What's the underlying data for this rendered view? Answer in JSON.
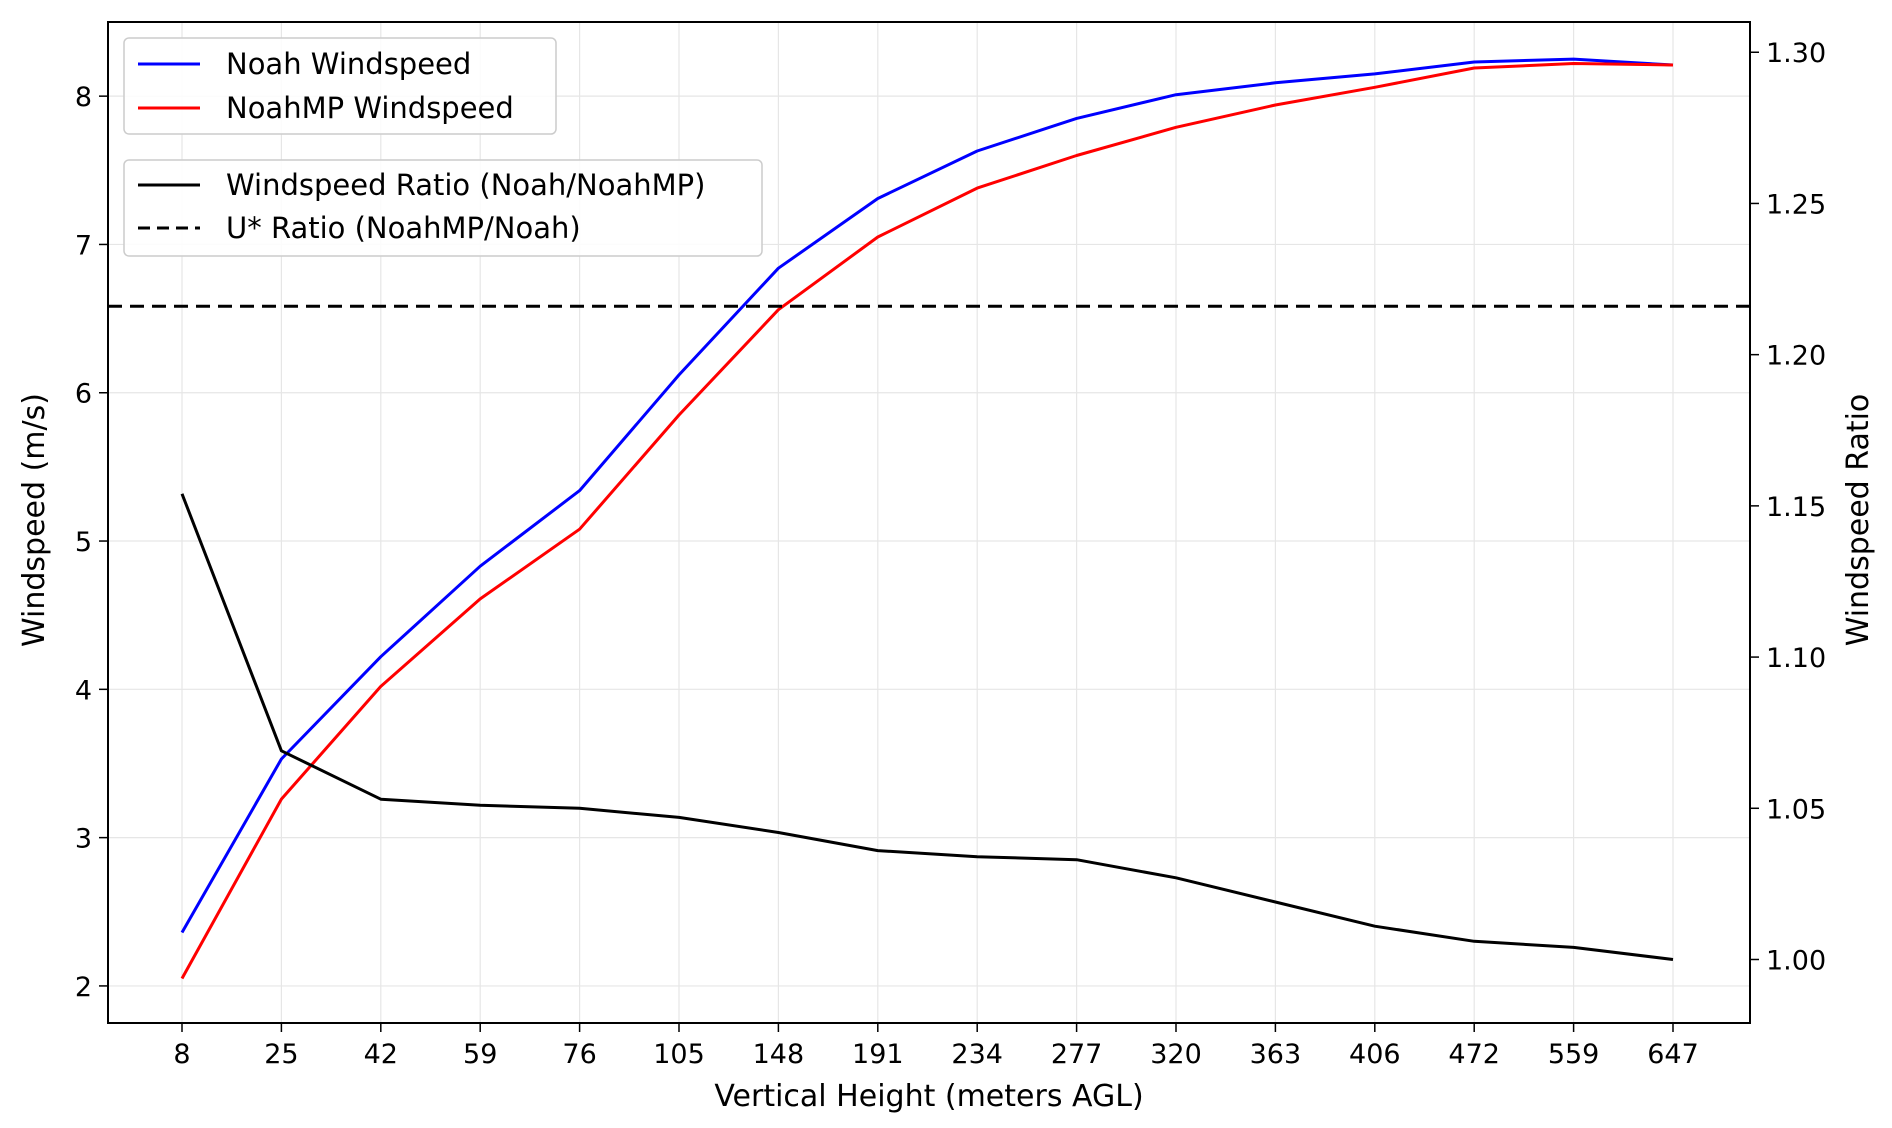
{
  "chart_data": {
    "type": "line",
    "xlabel": "Vertical Height (meters AGL)",
    "ylabel_left": "Windspeed (m/s)",
    "ylabel_right": "Windspeed Ratio",
    "categories": [
      "8",
      "25",
      "42",
      "59",
      "76",
      "105",
      "148",
      "191",
      "234",
      "277",
      "320",
      "363",
      "406",
      "472",
      "559",
      "647"
    ],
    "ylim_left": [
      1.75,
      8.5
    ],
    "ylim_right": [
      0.979,
      1.31
    ],
    "yticks_left": [
      "2",
      "3",
      "4",
      "5",
      "6",
      "7",
      "8"
    ],
    "yticks_right": [
      "1.00",
      "1.05",
      "1.10",
      "1.15",
      "1.20",
      "1.25",
      "1.30"
    ],
    "grid": true,
    "series": [
      {
        "name": "Noah Windspeed",
        "axis": "left",
        "color": "#0000ff",
        "style": "solid",
        "values": [
          2.36,
          3.53,
          4.22,
          4.83,
          5.34,
          6.12,
          6.84,
          7.31,
          7.63,
          7.85,
          8.01,
          8.09,
          8.15,
          8.23,
          8.25,
          8.21
        ]
      },
      {
        "name": "NoahMP Windspeed",
        "axis": "left",
        "color": "#ff0000",
        "style": "solid",
        "values": [
          2.05,
          3.26,
          4.02,
          4.61,
          5.08,
          5.85,
          6.56,
          7.05,
          7.38,
          7.6,
          7.79,
          7.94,
          8.06,
          8.19,
          8.22,
          8.21
        ]
      },
      {
        "name": "Windspeed Ratio (Noah/NoahMP)",
        "axis": "right",
        "color": "#000000",
        "style": "solid",
        "values": [
          1.154,
          1.069,
          1.053,
          1.051,
          1.05,
          1.047,
          1.042,
          1.036,
          1.034,
          1.033,
          1.027,
          1.019,
          1.011,
          1.006,
          1.004,
          1.0
        ]
      },
      {
        "name": "U* Ratio (NoahMP/Noah)",
        "axis": "right",
        "color": "#000000",
        "style": "dashed",
        "constant": 1.216
      }
    ],
    "legends": [
      {
        "placement": "top-left",
        "entries": [
          "Noah Windspeed",
          "NoahMP Windspeed"
        ]
      },
      {
        "placement": "upper-left",
        "entries": [
          "Windspeed Ratio (Noah/NoahMP)",
          "U* Ratio (NoahMP/Noah)"
        ]
      }
    ]
  }
}
